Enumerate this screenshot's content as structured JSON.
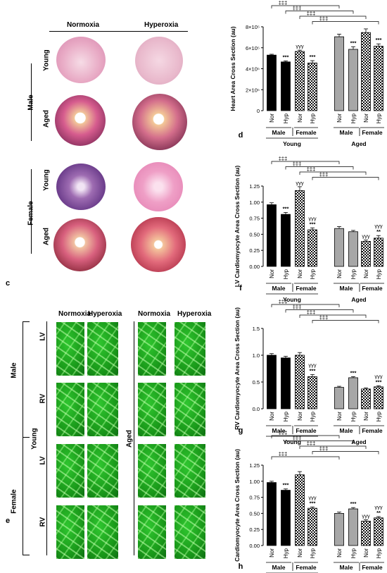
{
  "panel_c": {
    "letter": "c",
    "col_headers": [
      "Normoxia",
      "Hyperoxia"
    ],
    "sex_labels": [
      "Male",
      "Female"
    ],
    "age_labels": [
      "Young",
      "Aged",
      "Young",
      "Aged"
    ]
  },
  "panel_e": {
    "letter": "e",
    "col_headers": [
      "Normoxia",
      "Hyperoxia",
      "Normoxia",
      "Hyperoxia"
    ],
    "sex_labels": [
      "Male",
      "Female"
    ],
    "age_labels": [
      "Young",
      "Aged"
    ],
    "chamber_labels": [
      "LV",
      "RV",
      "LV",
      "RV"
    ]
  },
  "chart_data": [
    {
      "type": "bar",
      "letter": "d",
      "ylabel": "Heart Area Cross Section (au)",
      "y_tick_labels": [
        "0",
        "2×10⁵",
        "4×10⁵",
        "6×10⁵",
        "8×10⁵"
      ],
      "ylim": [
        0,
        800000
      ],
      "categories": [
        "Nor",
        "Hyp",
        "Nor",
        "Hyp",
        "Nor",
        "Hyp",
        "Nor",
        "Hyp"
      ],
      "sex_groups": [
        "Male",
        "Female",
        "Male",
        "Female"
      ],
      "age_groups": [
        "Young",
        "Aged"
      ],
      "values": [
        530000,
        465000,
        565000,
        455000,
        705000,
        585000,
        745000,
        615000
      ],
      "errors": [
        8000,
        10000,
        12000,
        22000,
        25000,
        25000,
        35000,
        22000
      ],
      "annotations": [
        "",
        "***",
        "γγγ",
        "***",
        "",
        "***",
        "",
        "***"
      ],
      "brackets": [
        "‡‡‡",
        "‡‡‡",
        "‡‡‡",
        "‡‡‡"
      ]
    },
    {
      "type": "bar",
      "letter": "f",
      "ylabel": "LV Cardiomyocyte Area Cross Section (au)",
      "y_tick_labels": [
        "0.00",
        "0.25",
        "0.50",
        "0.75",
        "1.00",
        "1.25"
      ],
      "ylim": [
        0,
        1.25
      ],
      "categories": [
        "Nor",
        "Hyp",
        "Nor",
        "Hyp",
        "Nor",
        "Hyp",
        "Nor",
        "Hyp"
      ],
      "sex_groups": [
        "Male",
        "Female",
        "Male",
        "Female"
      ],
      "age_groups": [
        "Young",
        "Aged"
      ],
      "values": [
        0.96,
        0.81,
        1.18,
        0.57,
        0.59,
        0.54,
        0.39,
        0.44
      ],
      "errors": [
        0.03,
        0.03,
        0.06,
        0.03,
        0.03,
        0.02,
        0.02,
        0.04
      ],
      "annotations": [
        "",
        "***",
        "γγγ",
        "γγγ\n***",
        "",
        "",
        "γγγ",
        "γγγ\n**"
      ],
      "brackets": [
        "‡‡‡",
        "‡‡‡",
        "‡‡‡",
        "‡‡‡"
      ]
    },
    {
      "type": "bar",
      "letter": "g",
      "ylabel": "RV Cardiomyocyte Area Cross Section (au)",
      "y_tick_labels": [
        "0.0",
        "0.5",
        "1.0",
        "1.5"
      ],
      "ylim": [
        0,
        1.5
      ],
      "categories": [
        "Nor",
        "Hyp",
        "Nor",
        "Hyp",
        "Nor",
        "Hyp",
        "Nor",
        "Hyp"
      ],
      "sex_groups": [
        "Male",
        "Female",
        "Male",
        "Female"
      ],
      "age_groups": [
        "Young",
        "Aged"
      ],
      "values": [
        1.0,
        0.95,
        1.0,
        0.6,
        0.4,
        0.58,
        0.37,
        0.41
      ],
      "errors": [
        0.03,
        0.03,
        0.05,
        0.04,
        0.02,
        0.02,
        0.02,
        0.02
      ],
      "annotations": [
        "",
        "",
        "",
        "γγγ\n***",
        "",
        "***",
        "",
        "γγγ\n***"
      ],
      "brackets": [
        "‡‡‡",
        "‡‡‡",
        "‡‡‡",
        "‡‡‡"
      ]
    },
    {
      "type": "bar",
      "letter": "h",
      "ylabel": "Cardiomyocyte Area Cross Section (au)",
      "y_tick_labels": [
        "0.00",
        "0.25",
        "0.50",
        "0.75",
        "1.00",
        "1.25"
      ],
      "ylim": [
        0,
        1.25
      ],
      "categories": [
        "Nor",
        "Hyp",
        "Nor",
        "Hyp",
        "Nor",
        "Hyp",
        "Nor",
        "Hyp"
      ],
      "sex_groups": [
        "Male",
        "Female",
        "Male",
        "Female"
      ],
      "age_groups": [
        "Young",
        "Aged"
      ],
      "values": [
        0.98,
        0.86,
        1.1,
        0.58,
        0.5,
        0.57,
        0.38,
        0.43
      ],
      "errors": [
        0.02,
        0.02,
        0.05,
        0.02,
        0.02,
        0.02,
        0.02,
        0.02
      ],
      "annotations": [
        "",
        "***",
        "",
        "γγγ\n***",
        "",
        "***",
        "γγγ",
        "γγγ\n**"
      ],
      "brackets": [
        "‡‡‡",
        "‡‡‡",
        "‡‡‡",
        "‡‡‡",
        "‡‡‡"
      ]
    }
  ]
}
